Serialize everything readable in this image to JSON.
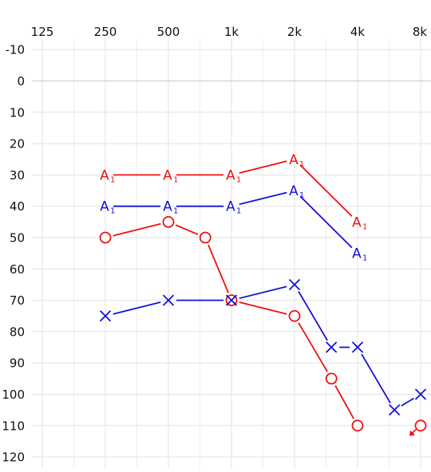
{
  "chart_data": {
    "type": "line",
    "chart_kind": "audiogram",
    "x_scale": "log2",
    "y_inverted": true,
    "grid": true,
    "x_ticks": [
      {
        "value": 125,
        "label": "125"
      },
      {
        "value": 250,
        "label": "250"
      },
      {
        "value": 500,
        "label": "500"
      },
      {
        "value": 1000,
        "label": "1k"
      },
      {
        "value": 2000,
        "label": "2k"
      },
      {
        "value": 4000,
        "label": "4k"
      },
      {
        "value": 8000,
        "label": "8k"
      }
    ],
    "y_ticks": [
      -10,
      0,
      10,
      20,
      30,
      40,
      50,
      60,
      70,
      80,
      90,
      100,
      110,
      120
    ],
    "xlim": [
      125,
      8000
    ],
    "ylim": [
      -10,
      120
    ],
    "colors": {
      "red": "#ee1111",
      "blue": "#1111dd"
    },
    "series": [
      {
        "ear": "right",
        "conduction": "air",
        "marker": "circle",
        "color": "#ee1111",
        "points": [
          {
            "x": 250,
            "y": 50
          },
          {
            "x": 500,
            "y": 45
          },
          {
            "x": 750,
            "y": 50
          },
          {
            "x": 1000,
            "y": 70
          },
          {
            "x": 2000,
            "y": 75
          },
          {
            "x": 3000,
            "y": 95
          },
          {
            "x": 4000,
            "y": 110
          },
          {
            "x": 8000,
            "y": 110,
            "no_response": true,
            "connected": false
          }
        ]
      },
      {
        "ear": "left",
        "conduction": "air",
        "marker": "cross",
        "color": "#1111dd",
        "points": [
          {
            "x": 250,
            "y": 75
          },
          {
            "x": 500,
            "y": 70
          },
          {
            "x": 1000,
            "y": 70
          },
          {
            "x": 2000,
            "y": 65
          },
          {
            "x": 3000,
            "y": 85
          },
          {
            "x": 4000,
            "y": 85
          },
          {
            "x": 6000,
            "y": 105
          },
          {
            "x": 8000,
            "y": 100
          }
        ]
      },
      {
        "ear": "right",
        "conduction": "aided",
        "marker": "A1",
        "color": "#ee1111",
        "marker_text": "A",
        "marker_sub": "1",
        "points": [
          {
            "x": 250,
            "y": 30
          },
          {
            "x": 500,
            "y": 30
          },
          {
            "x": 1000,
            "y": 30
          },
          {
            "x": 2000,
            "y": 25
          },
          {
            "x": 4000,
            "y": 45
          }
        ]
      },
      {
        "ear": "left",
        "conduction": "aided",
        "marker": "A1",
        "color": "#1111dd",
        "marker_text": "A",
        "marker_sub": "1",
        "points": [
          {
            "x": 250,
            "y": 40
          },
          {
            "x": 500,
            "y": 40
          },
          {
            "x": 1000,
            "y": 40
          },
          {
            "x": 2000,
            "y": 35
          },
          {
            "x": 4000,
            "y": 55
          }
        ]
      }
    ]
  }
}
